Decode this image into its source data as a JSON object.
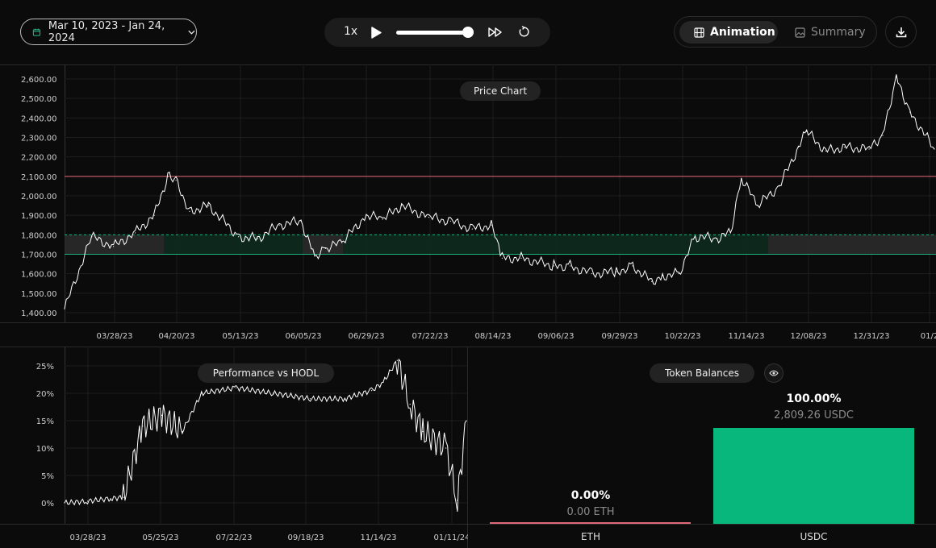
{
  "toolbar": {
    "date_range": "Mar 10, 2023 - Jan 24, 2024",
    "speed": "1x",
    "progress": 1.0,
    "tabs": [
      {
        "label": "Animation",
        "active": true
      },
      {
        "label": "Summary",
        "active": false
      }
    ]
  },
  "price_chart": {
    "title": "Price Chart",
    "y_ticks": [
      "2,600.00",
      "2,500.00",
      "2,400.00",
      "2,300.00",
      "2,200.00",
      "2,100.00",
      "2,000.00",
      "1,900.00",
      "1,800.00",
      "1,700.00",
      "1,600.00",
      "1,500.00",
      "1,400.00"
    ],
    "x_ticks": [
      "03/28/23",
      "04/20/23",
      "05/13/23",
      "06/05/23",
      "06/29/23",
      "07/22/23",
      "08/14/23",
      "09/06/23",
      "09/29/23",
      "10/22/23",
      "11/14/23",
      "12/08/23",
      "12/31/23",
      "01/2"
    ],
    "upper_line": 2100,
    "colors": {
      "price": "#ffffff",
      "upper": "#e36a7a",
      "range": "#1db37f"
    }
  },
  "perf_chart": {
    "title": "Performance vs HODL",
    "y_ticks": [
      "25%",
      "20%",
      "15%",
      "10%",
      "5%",
      "0%"
    ],
    "x_ticks": [
      "03/28/23",
      "05/25/23",
      "07/22/23",
      "09/18/23",
      "11/14/23",
      "01/11/24"
    ]
  },
  "balances": {
    "title": "Token Balances",
    "tokens": [
      {
        "symbol": "ETH",
        "pct": "0.00%",
        "value": "0.00 ETH",
        "fraction": 0.0,
        "color": "#e36a7a"
      },
      {
        "symbol": "USDC",
        "pct": "100.00%",
        "value": "2,809.26 USDC",
        "fraction": 1.0,
        "color": "#08b77b"
      }
    ]
  },
  "chart_data": [
    {
      "type": "line",
      "title": "Price Chart",
      "x": [
        "03/10/23",
        "03/20/23",
        "03/28/23",
        "04/05/23",
        "04/12/23",
        "04/17/23",
        "04/20/23",
        "04/25/23",
        "05/02/23",
        "05/13/23",
        "05/20/23",
        "05/28/23",
        "06/05/23",
        "06/10/23",
        "06/14/23",
        "06/20/23",
        "06/29/23",
        "07/05/23",
        "07/12/23",
        "07/22/23",
        "07/30/23",
        "08/07/23",
        "08/14/23",
        "08/18/23",
        "08/25/23",
        "09/06/23",
        "09/12/23",
        "09/20/23",
        "09/29/23",
        "10/05/23",
        "10/12/23",
        "10/16/23",
        "10/22/23",
        "10/28/23",
        "11/05/23",
        "11/10/23",
        "11/14/23",
        "11/20/23",
        "11/28/23",
        "12/05/23",
        "12/08/23",
        "12/15/23",
        "12/22/23",
        "12/31/23",
        "01/05/24",
        "01/10/24",
        "01/15/24",
        "01/24/24"
      ],
      "series": [
        {
          "values": [
            1420,
            1790,
            1740,
            1810,
            1900,
            2100,
            2080,
            1920,
            1950,
            1790,
            1780,
            1850,
            1870,
            1690,
            1730,
            1760,
            1900,
            1880,
            1950,
            1890,
            1870,
            1830,
            1850,
            1680,
            1680,
            1640,
            1640,
            1600,
            1610,
            1640,
            1560,
            1590,
            1600,
            1790,
            1780,
            1810,
            2090,
            1950,
            2050,
            2250,
            2330,
            2230,
            2250,
            2240,
            2310,
            2610,
            2430,
            2240
          ]
        }
      ],
      "ylim": [
        1380,
        2620
      ],
      "reference_lines": [
        {
          "value": 2100
        }
      ],
      "range_band": [
        1700,
        1800
      ]
    },
    {
      "type": "line",
      "title": "Performance vs HODL",
      "x": [
        "03/10/23",
        "03/28/23",
        "04/15/23",
        "04/25/23",
        "05/10/23",
        "05/25/23",
        "06/10/23",
        "06/25/23",
        "07/22/23",
        "08/20/23",
        "09/18/23",
        "10/15/23",
        "11/05/23",
        "11/14/23",
        "11/25/23",
        "12/05/23",
        "12/15/23",
        "01/02/24",
        "01/11/24",
        "01/18/24"
      ],
      "series": [
        {
          "values": [
            0.0,
            0.3,
            0.8,
            1.0,
            14.0,
            16.0,
            13.0,
            20.0,
            21.0,
            20.0,
            19.0,
            19.0,
            20.5,
            22.0,
            26.0,
            18.0,
            13.0,
            10.0,
            0.5,
            15.0
          ]
        }
      ],
      "ylim": [
        -1.5,
        27.5
      ]
    }
  ]
}
